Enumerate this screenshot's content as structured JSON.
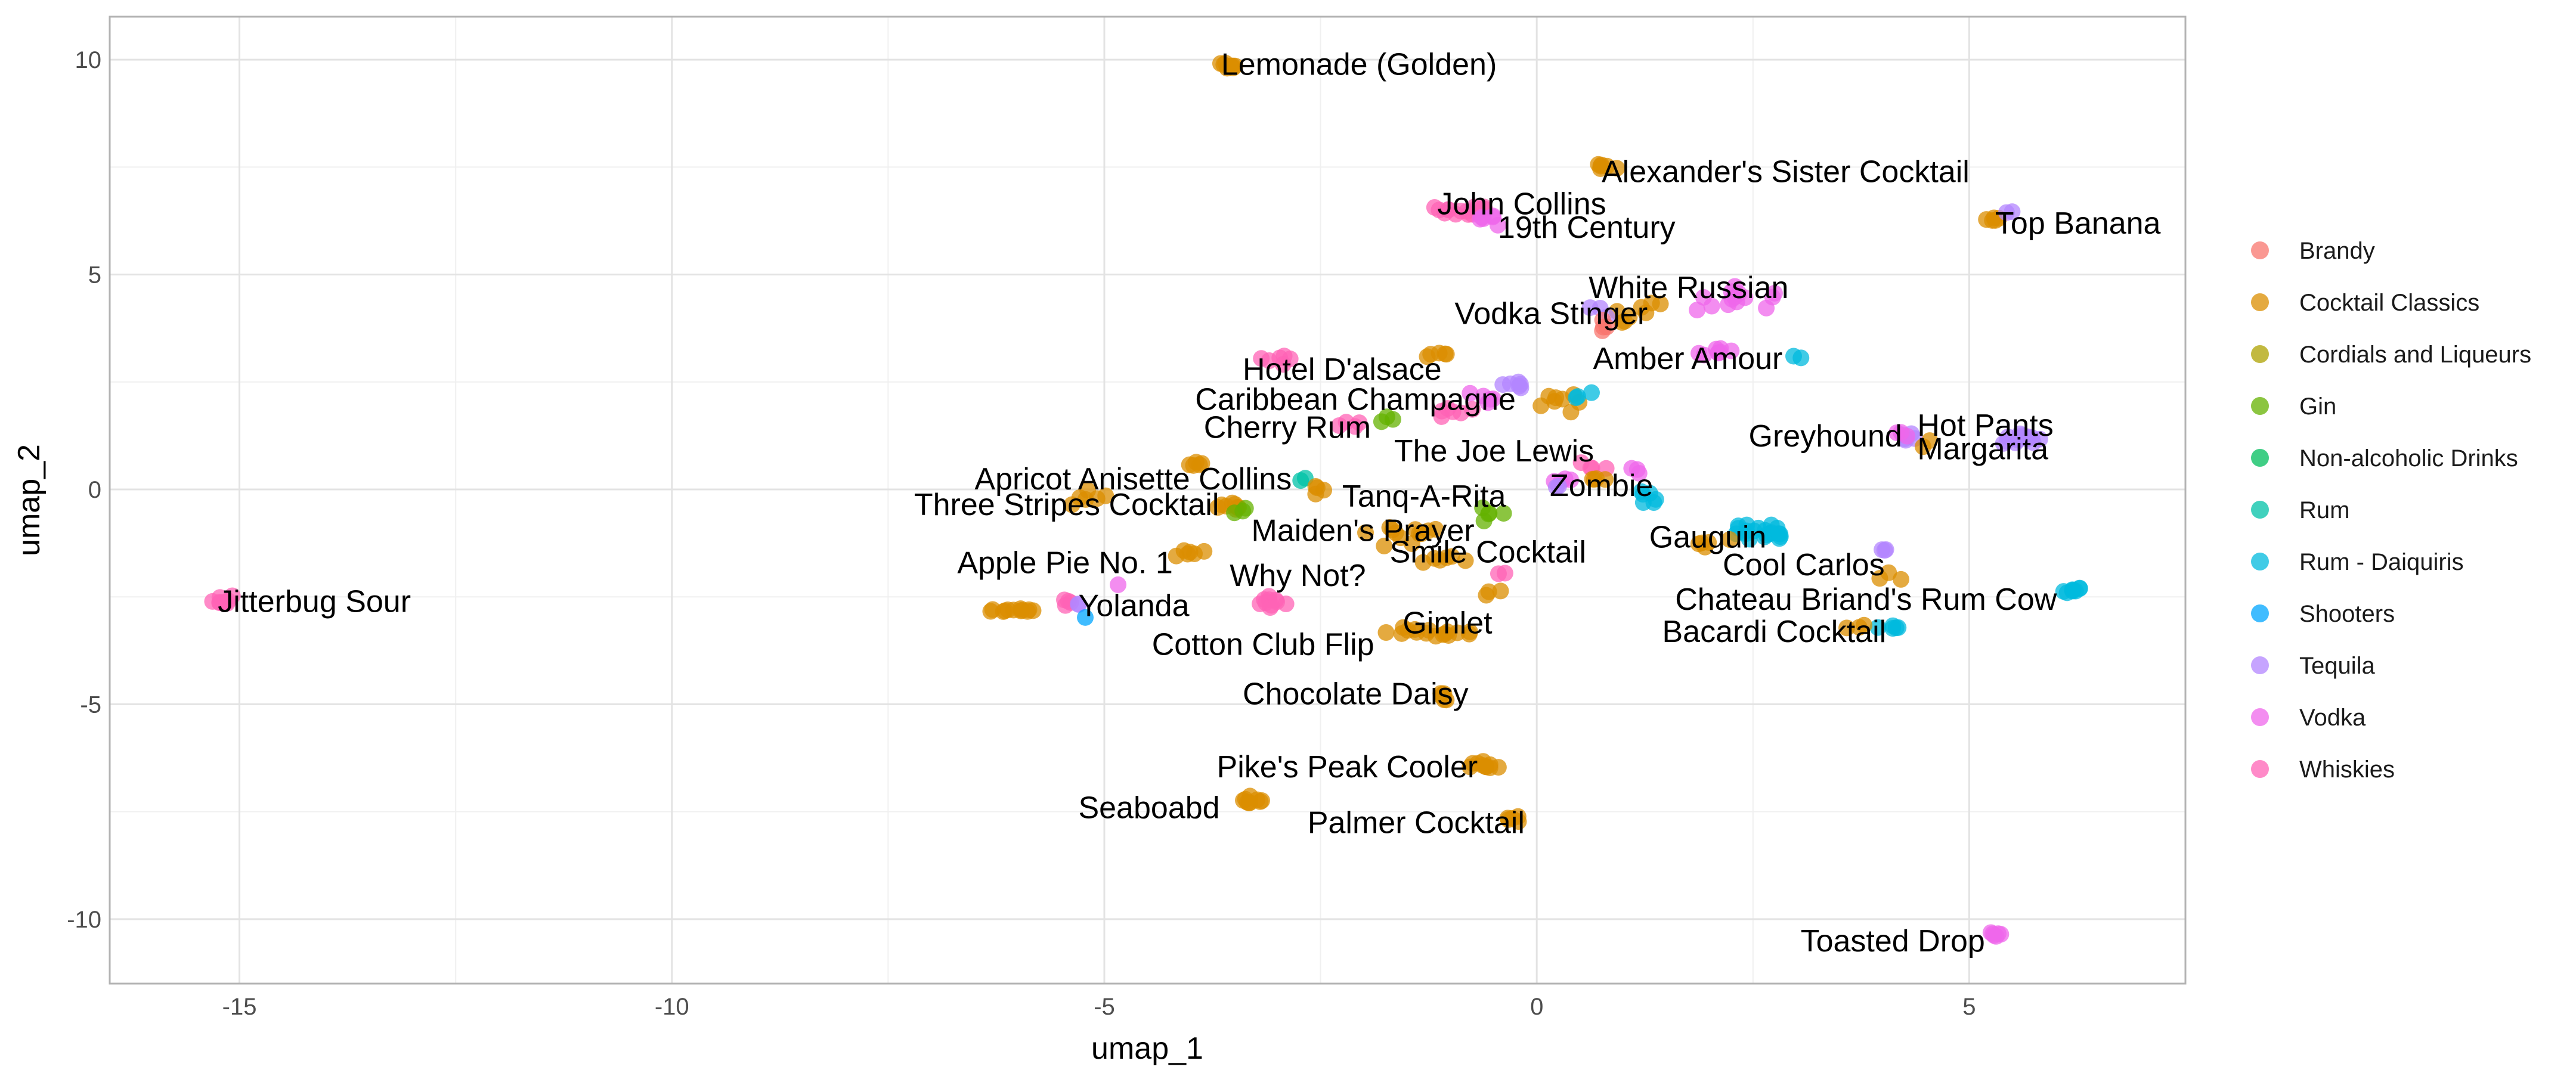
{
  "chart_data": {
    "type": "scatter",
    "xlabel": "umap_1",
    "ylabel": "umap_2",
    "xlim": [
      -16.5,
      7.5
    ],
    "ylim": [
      -11.5,
      11.0
    ],
    "x_ticks": [
      -15,
      -10,
      -5,
      0,
      5
    ],
    "y_ticks": [
      -10,
      -5,
      0,
      5,
      10
    ],
    "x_tick_labels": [
      "-15",
      "-10",
      "-5",
      "0",
      "5"
    ],
    "y_tick_labels": [
      "-10",
      "-5",
      "0",
      "5",
      "10"
    ],
    "grid": true,
    "legend_position": "right",
    "legend": [
      {
        "name": "Brandy",
        "color": "#F8766D"
      },
      {
        "name": "Cocktail Classics",
        "color": "#DB8E00"
      },
      {
        "name": "Cordials and Liqueurs",
        "color": "#AEA200"
      },
      {
        "name": "Gin",
        "color": "#64B200"
      },
      {
        "name": "Non-alcoholic Drinks",
        "color": "#00BD5C"
      },
      {
        "name": "Rum",
        "color": "#00C1A7"
      },
      {
        "name": "Rum - Daiquiris",
        "color": "#00BADE"
      },
      {
        "name": "Shooters",
        "color": "#00A6FF"
      },
      {
        "name": "Tequila",
        "color": "#B385FF"
      },
      {
        "name": "Vodka",
        "color": "#EF67EB"
      },
      {
        "name": "Whiskies",
        "color": "#FF63B6"
      }
    ],
    "clusters": [
      {
        "cat": "Whiskies",
        "x": -15.2,
        "y": -2.6,
        "sx": 0.15,
        "sy": 0.12,
        "n": 10
      },
      {
        "cat": "Cocktail Classics",
        "x": -3.6,
        "y": 9.85,
        "sx": 0.15,
        "sy": 0.08,
        "n": 8
      },
      {
        "cat": "Cocktail Classics",
        "x": 0.8,
        "y": 7.5,
        "sx": 0.15,
        "sy": 0.08,
        "n": 6
      },
      {
        "cat": "Whiskies",
        "x": -0.8,
        "y": 6.5,
        "sx": 0.4,
        "sy": 0.2,
        "n": 16
      },
      {
        "cat": "Vodka",
        "x": -0.6,
        "y": 6.3,
        "sx": 0.3,
        "sy": 0.2,
        "n": 6
      },
      {
        "cat": "Cocktail Classics",
        "x": 5.3,
        "y": 6.3,
        "sx": 0.1,
        "sy": 0.1,
        "n": 5
      },
      {
        "cat": "Tequila",
        "x": 5.45,
        "y": 6.45,
        "sx": 0.05,
        "sy": 0.05,
        "n": 2
      },
      {
        "cat": "Vodka",
        "x": 2.3,
        "y": 4.5,
        "sx": 0.5,
        "sy": 0.3,
        "n": 14
      },
      {
        "cat": "Cocktail Classics",
        "x": 1.2,
        "y": 4.2,
        "sx": 0.4,
        "sy": 0.3,
        "n": 8
      },
      {
        "cat": "Tequila",
        "x": 0.7,
        "y": 4.2,
        "sx": 0.2,
        "sy": 0.2,
        "n": 3
      },
      {
        "cat": "Vodka",
        "x": 2.0,
        "y": 3.2,
        "sx": 0.3,
        "sy": 0.2,
        "n": 8
      },
      {
        "cat": "Rum - Daiquiris",
        "x": 3.0,
        "y": 3.1,
        "sx": 0.1,
        "sy": 0.1,
        "n": 2
      },
      {
        "cat": "Brandy",
        "x": 0.8,
        "y": 3.8,
        "sx": 0.15,
        "sy": 0.2,
        "n": 4
      },
      {
        "cat": "Whiskies",
        "x": -3.0,
        "y": 3.0,
        "sx": 0.2,
        "sy": 0.15,
        "n": 6
      },
      {
        "cat": "Cocktail Classics",
        "x": -1.2,
        "y": 3.1,
        "sx": 0.2,
        "sy": 0.1,
        "n": 5
      },
      {
        "cat": "Tequila",
        "x": -0.3,
        "y": 2.4,
        "sx": 0.2,
        "sy": 0.15,
        "n": 6
      },
      {
        "cat": "Vodka",
        "x": -0.6,
        "y": 2.1,
        "sx": 0.3,
        "sy": 0.2,
        "n": 5
      },
      {
        "cat": "Whiskies",
        "x": -1.0,
        "y": 1.8,
        "sx": 0.3,
        "sy": 0.2,
        "n": 6
      },
      {
        "cat": "Cocktail Classics",
        "x": 0.3,
        "y": 2.0,
        "sx": 0.4,
        "sy": 0.3,
        "n": 8
      },
      {
        "cat": "Rum - Daiquiris",
        "x": 0.6,
        "y": 2.2,
        "sx": 0.2,
        "sy": 0.1,
        "n": 3
      },
      {
        "cat": "Gin",
        "x": -1.8,
        "y": 1.6,
        "sx": 0.2,
        "sy": 0.1,
        "n": 3
      },
      {
        "cat": "Whiskies",
        "x": -2.2,
        "y": 1.5,
        "sx": 0.15,
        "sy": 0.1,
        "n": 4
      },
      {
        "cat": "Cocktail Classics",
        "x": -3.9,
        "y": 0.6,
        "sx": 0.15,
        "sy": 0.15,
        "n": 5
      },
      {
        "cat": "Cocktail Classics",
        "x": -5.2,
        "y": -0.2,
        "sx": 0.3,
        "sy": 0.2,
        "n": 6
      },
      {
        "cat": "Cocktail Classics",
        "x": -3.5,
        "y": -0.4,
        "sx": 0.3,
        "sy": 0.15,
        "n": 8
      },
      {
        "cat": "Gin",
        "x": -3.4,
        "y": -0.5,
        "sx": 0.15,
        "sy": 0.1,
        "n": 3
      },
      {
        "cat": "Rum",
        "x": -2.7,
        "y": 0.3,
        "sx": 0.1,
        "sy": 0.1,
        "n": 2
      },
      {
        "cat": "Cocktail Classics",
        "x": -2.5,
        "y": 0.0,
        "sx": 0.2,
        "sy": 0.2,
        "n": 4
      },
      {
        "cat": "Gin",
        "x": -0.6,
        "y": -0.6,
        "sx": 0.2,
        "sy": 0.15,
        "n": 5
      },
      {
        "cat": "Cocktail Classics",
        "x": -1.5,
        "y": -1.0,
        "sx": 0.5,
        "sy": 0.3,
        "n": 12
      },
      {
        "cat": "Vodka",
        "x": 0.3,
        "y": 0.2,
        "sx": 0.2,
        "sy": 0.15,
        "n": 4
      },
      {
        "cat": "Whiskies",
        "x": 0.6,
        "y": 0.5,
        "sx": 0.2,
        "sy": 0.15,
        "n": 4
      },
      {
        "cat": "Tequila",
        "x": 0.2,
        "y": 0.1,
        "sx": 0.1,
        "sy": 0.1,
        "n": 2
      },
      {
        "cat": "Cocktail Classics",
        "x": 0.7,
        "y": 0.3,
        "sx": 0.2,
        "sy": 0.15,
        "n": 4
      },
      {
        "cat": "Vodka",
        "x": 1.1,
        "y": 0.4,
        "sx": 0.2,
        "sy": 0.2,
        "n": 3
      },
      {
        "cat": "Rum - Daiquiris",
        "x": 1.3,
        "y": -0.2,
        "sx": 0.25,
        "sy": 0.2,
        "n": 6
      },
      {
        "cat": "Rum - Daiquiris",
        "x": 2.6,
        "y": -1.0,
        "sx": 0.35,
        "sy": 0.2,
        "n": 20
      },
      {
        "cat": "Cocktail Classics",
        "x": 2.0,
        "y": -1.3,
        "sx": 0.3,
        "sy": 0.15,
        "n": 5
      },
      {
        "cat": "Tequila",
        "x": 4.3,
        "y": 1.2,
        "sx": 0.15,
        "sy": 0.1,
        "n": 5
      },
      {
        "cat": "Tequila",
        "x": 5.6,
        "y": 1.2,
        "sx": 0.3,
        "sy": 0.2,
        "n": 16
      },
      {
        "cat": "Vodka",
        "x": 4.2,
        "y": 1.3,
        "sx": 0.1,
        "sy": 0.1,
        "n": 3
      },
      {
        "cat": "Cocktail Classics",
        "x": 4.5,
        "y": 1.1,
        "sx": 0.1,
        "sy": 0.1,
        "n": 2
      },
      {
        "cat": "Tequila",
        "x": 4.0,
        "y": -1.4,
        "sx": 0.1,
        "sy": 0.1,
        "n": 3
      },
      {
        "cat": "Rum - Daiquiris",
        "x": 6.2,
        "y": -2.35,
        "sx": 0.15,
        "sy": 0.08,
        "n": 8
      },
      {
        "cat": "Rum - Daiquiris",
        "x": 4.1,
        "y": -3.2,
        "sx": 0.15,
        "sy": 0.05,
        "n": 5
      },
      {
        "cat": "Cocktail Classics",
        "x": 3.7,
        "y": -3.2,
        "sx": 0.2,
        "sy": 0.05,
        "n": 3
      },
      {
        "cat": "Cocktail Classics",
        "x": 4.1,
        "y": -2.0,
        "sx": 0.2,
        "sy": 0.2,
        "n": 3
      },
      {
        "cat": "Vodka",
        "x": 5.3,
        "y": -10.35,
        "sx": 0.1,
        "sy": 0.08,
        "n": 6
      },
      {
        "cat": "Cocktail Classics",
        "x": -6.2,
        "y": -2.8,
        "sx": 0.35,
        "sy": 0.06,
        "n": 12
      },
      {
        "cat": "Whiskies",
        "x": -5.4,
        "y": -2.6,
        "sx": 0.15,
        "sy": 0.1,
        "n": 4
      },
      {
        "cat": "Tequila",
        "x": -5.3,
        "y": -2.7,
        "sx": 0.1,
        "sy": 0.08,
        "n": 2
      },
      {
        "cat": "Shooters",
        "x": -5.2,
        "y": -2.95,
        "sx": 0.05,
        "sy": 0.05,
        "n": 1
      },
      {
        "cat": "Vodka",
        "x": -4.8,
        "y": -2.2,
        "sx": 0.05,
        "sy": 0.05,
        "n": 1
      },
      {
        "cat": "Whiskies",
        "x": -3.2,
        "y": -2.6,
        "sx": 0.35,
        "sy": 0.15,
        "n": 10
      },
      {
        "cat": "Cocktail Classics",
        "x": -4.0,
        "y": -1.5,
        "sx": 0.3,
        "sy": 0.2,
        "n": 6
      },
      {
        "cat": "Cocktail Classics",
        "x": -1.2,
        "y": -3.3,
        "sx": 0.6,
        "sy": 0.15,
        "n": 16
      },
      {
        "cat": "Cocktail Classics",
        "x": -0.5,
        "y": -2.4,
        "sx": 0.15,
        "sy": 0.1,
        "n": 3
      },
      {
        "cat": "Cocktail Classics",
        "x": -1.0,
        "y": -1.6,
        "sx": 0.3,
        "sy": 0.15,
        "n": 6
      },
      {
        "cat": "Whiskies",
        "x": -0.4,
        "y": -2.0,
        "sx": 0.1,
        "sy": 0.1,
        "n": 2
      },
      {
        "cat": "Cocktail Classics",
        "x": -1.1,
        "y": -4.8,
        "sx": 0.08,
        "sy": 0.2,
        "n": 6
      },
      {
        "cat": "Cocktail Classics",
        "x": -0.6,
        "y": -6.4,
        "sx": 0.2,
        "sy": 0.1,
        "n": 10
      },
      {
        "cat": "Cocktail Classics",
        "x": -3.3,
        "y": -7.3,
        "sx": 0.2,
        "sy": 0.15,
        "n": 9
      },
      {
        "cat": "Cocktail Classics",
        "x": -0.3,
        "y": -7.65,
        "sx": 0.1,
        "sy": 0.08,
        "n": 5
      }
    ],
    "annotations": [
      {
        "text": "Lemonade (Golden)",
        "x": -3.65,
        "y": 9.9
      },
      {
        "text": "Alexander's Sister Cocktail",
        "x": 0.75,
        "y": 7.4
      },
      {
        "text": "John Collins",
        "x": -1.15,
        "y": 6.65
      },
      {
        "text": "19th Century",
        "x": -0.45,
        "y": 6.1
      },
      {
        "text": "Top Banana",
        "x": 5.3,
        "y": 6.2
      },
      {
        "text": "White Russian",
        "x": 0.6,
        "y": 4.7
      },
      {
        "text": "Vodka Stinger",
        "x": -0.95,
        "y": 4.1
      },
      {
        "text": "Amber Amour",
        "x": 0.65,
        "y": 3.05
      },
      {
        "text": "Hotel D'alsace",
        "x": -3.4,
        "y": 2.8
      },
      {
        "text": "Caribbean Champagne",
        "x": -3.95,
        "y": 2.1
      },
      {
        "text": "Cherry Rum",
        "x": -3.85,
        "y": 1.45
      },
      {
        "text": "Greyhound",
        "x": 2.45,
        "y": 1.25
      },
      {
        "text": "Hot Pants",
        "x": 4.4,
        "y": 1.5
      },
      {
        "text": "Margarita",
        "x": 4.4,
        "y": 0.95
      },
      {
        "text": "The Joe Lewis",
        "x": -1.65,
        "y": 0.9
      },
      {
        "text": "Apricot Anisette Collins",
        "x": -6.5,
        "y": 0.25
      },
      {
        "text": "Zombie",
        "x": 0.15,
        "y": 0.1
      },
      {
        "text": "Tanq-A-Rita",
        "x": -2.25,
        "y": -0.15
      },
      {
        "text": "Three Stripes Cocktail",
        "x": -7.2,
        "y": -0.35
      },
      {
        "text": "Maiden's Prayer",
        "x": -3.3,
        "y": -0.95
      },
      {
        "text": "Gauguin",
        "x": 1.3,
        "y": -1.1
      },
      {
        "text": "Smile Cocktail",
        "x": -1.7,
        "y": -1.45
      },
      {
        "text": "Cool Carlos",
        "x": 2.15,
        "y": -1.75
      },
      {
        "text": "Apple Pie No. 1",
        "x": -6.7,
        "y": -1.7
      },
      {
        "text": "Why Not?",
        "x": -3.55,
        "y": -2.0
      },
      {
        "text": "Chateau Briand's Rum Cow",
        "x": 1.6,
        "y": -2.55
      },
      {
        "text": "Jitterbug Sour",
        "x": -15.25,
        "y": -2.6
      },
      {
        "text": "Yolanda",
        "x": -5.3,
        "y": -2.7
      },
      {
        "text": "Gimlet",
        "x": -1.55,
        "y": -3.1
      },
      {
        "text": "Bacardi Cocktail",
        "x": 1.45,
        "y": -3.3
      },
      {
        "text": "Cotton Club Flip",
        "x": -4.45,
        "y": -3.6
      },
      {
        "text": "Chocolate Daisy",
        "x": -3.4,
        "y": -4.75
      },
      {
        "text": "Pike's Peak Cooler",
        "x": -3.7,
        "y": -6.45
      },
      {
        "text": "Seaboabd",
        "x": -5.3,
        "y": -7.4
      },
      {
        "text": "Palmer Cocktail",
        "x": -2.65,
        "y": -7.75
      },
      {
        "text": "Toasted Drop",
        "x": 3.05,
        "y": -10.5
      }
    ]
  }
}
